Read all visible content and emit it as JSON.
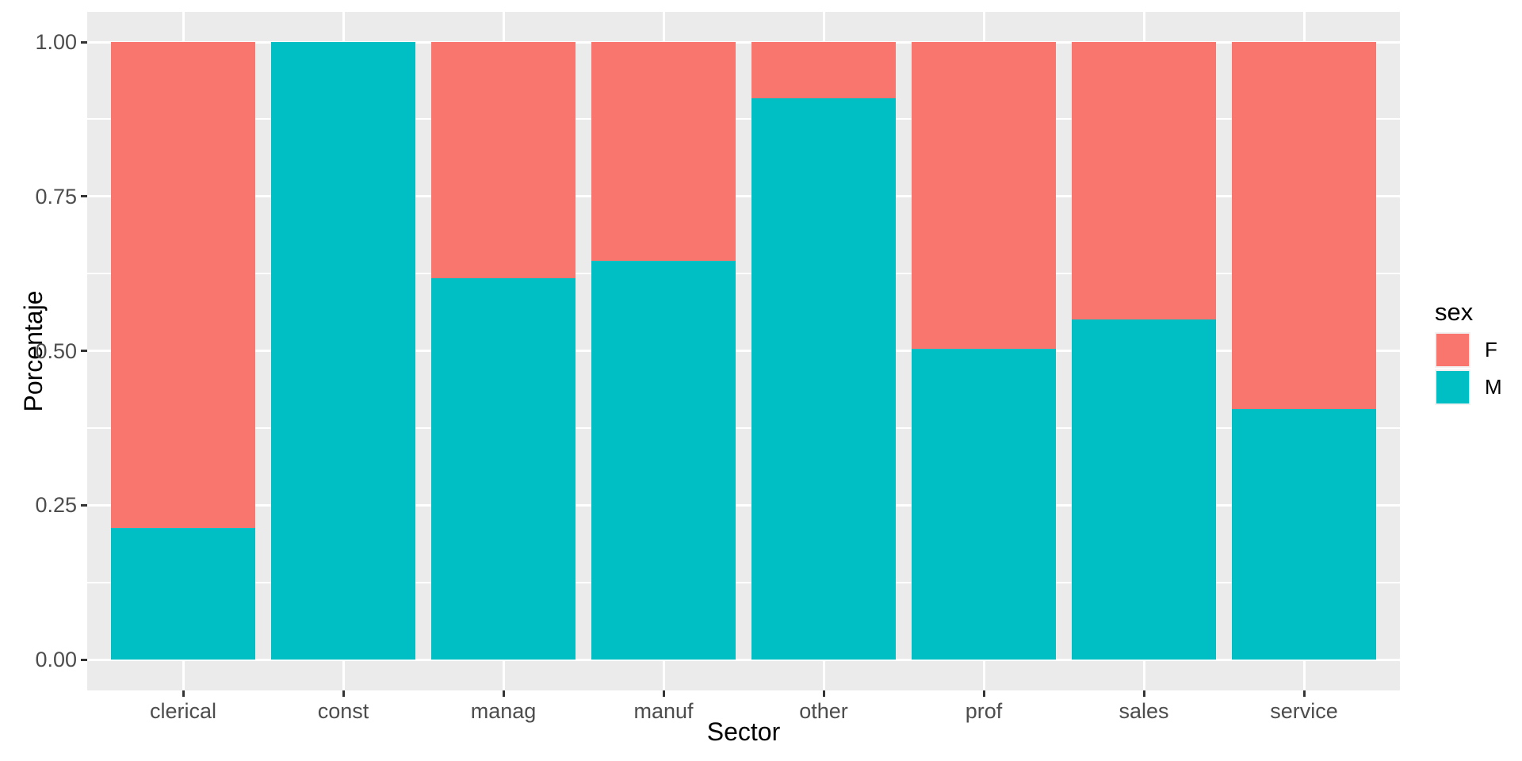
{
  "chart_data": {
    "type": "bar",
    "variant": "stacked-normalized",
    "title": "",
    "xlabel": "Sector",
    "ylabel": "Porcentaje",
    "categories": [
      "clerical",
      "const",
      "manag",
      "manuf",
      "other",
      "prof",
      "sales",
      "service"
    ],
    "series": [
      {
        "name": "F",
        "color": "#F8766D",
        "values": [
          0.787,
          0.0,
          0.383,
          0.354,
          0.091,
          0.497,
          0.449,
          0.594
        ]
      },
      {
        "name": "M",
        "color": "#00BFC4",
        "values": [
          0.213,
          1.0,
          0.617,
          0.646,
          0.909,
          0.503,
          0.551,
          0.406
        ]
      }
    ],
    "stack_order_bottom_to_top": [
      "M",
      "F"
    ],
    "ylim": [
      0,
      1
    ],
    "y_ticks": [
      {
        "label": "0.00",
        "value": 0
      },
      {
        "label": "0.25",
        "value": 0.25
      },
      {
        "label": "0.50",
        "value": 0.5
      },
      {
        "label": "0.75",
        "value": 0.75
      },
      {
        "label": "1.00",
        "value": 1.0
      }
    ],
    "y_minor": [
      0.125,
      0.375,
      0.625,
      0.875
    ],
    "grid": true,
    "legend": {
      "title": "sex",
      "position": "right",
      "entries": [
        {
          "label": "F",
          "color": "#F8766D"
        },
        {
          "label": "M",
          "color": "#00BFC4"
        }
      ]
    },
    "style": {
      "background": "#FFFFFF",
      "panel_bg": "#EBEBEB",
      "grid_color": "#FFFFFF",
      "tick_color": "#333333",
      "tick_label_color": "#4D4D4D",
      "axis_title_color": "#000000",
      "legend_text_color": "#000000",
      "legend_key_bg": "#F2F2F2"
    }
  }
}
